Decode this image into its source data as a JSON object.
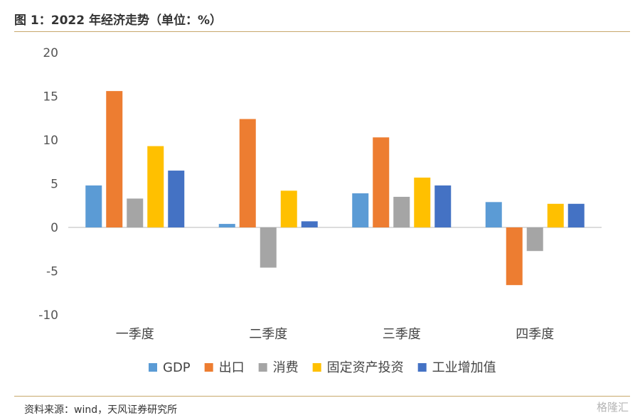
{
  "header": {
    "title": "图 1：2022 年经济走势（单位：%）"
  },
  "footer": {
    "source": "资料来源：wind，天风证券研究所",
    "watermark": "格隆汇"
  },
  "chart_data": {
    "type": "bar",
    "categories": [
      "一季度",
      "二季度",
      "三季度",
      "四季度"
    ],
    "series": [
      {
        "name": "GDP",
        "color": "#5b9bd5",
        "values": [
          4.8,
          0.4,
          3.9,
          2.9
        ]
      },
      {
        "name": "出口",
        "color": "#ed7d31",
        "values": [
          15.6,
          12.4,
          10.3,
          -6.6
        ]
      },
      {
        "name": "消费",
        "color": "#a5a5a5",
        "values": [
          3.3,
          -4.6,
          3.5,
          -2.7
        ]
      },
      {
        "name": "固定资产投资",
        "color": "#ffc000",
        "values": [
          9.3,
          4.2,
          5.7,
          2.7
        ]
      },
      {
        "name": "工业增加值",
        "color": "#4472c4",
        "values": [
          6.5,
          0.7,
          4.8,
          2.7
        ]
      }
    ],
    "ylim": [
      -10,
      20
    ],
    "yticks": [
      20,
      15,
      10,
      5,
      0,
      -5,
      -10
    ],
    "grid": false,
    "legend": "bottom"
  }
}
